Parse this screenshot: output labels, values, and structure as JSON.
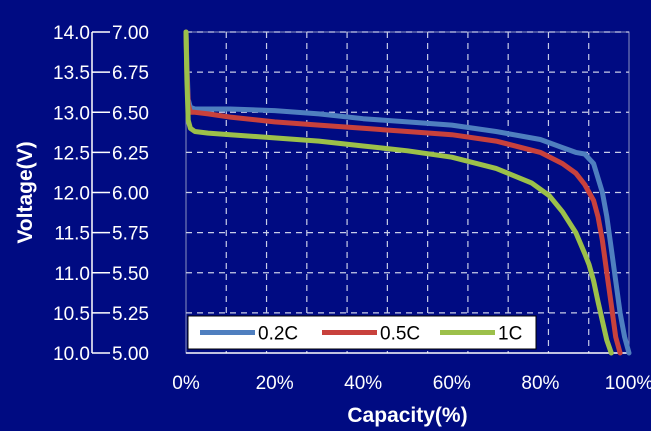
{
  "chart_data": {
    "type": "line",
    "xlabel": "Capacity(%)",
    "ylabel": "Voltage(V)",
    "xlim": [
      0,
      100
    ],
    "ylim": [
      5.0,
      7.0
    ],
    "x_ticks": [
      "0%",
      "20%",
      "40%",
      "60%",
      "80%",
      "100%"
    ],
    "x_tick_values": [
      0,
      20,
      40,
      60,
      80,
      100
    ],
    "y_ticks_left": [
      "14.0",
      "13.5",
      "13.0",
      "12.5",
      "12.0",
      "11.5",
      "11.0",
      "10.5",
      "10.0"
    ],
    "y_ticks_right": [
      "7.00",
      "6.75",
      "6.50",
      "6.25",
      "6.00",
      "5.75",
      "5.50",
      "5.25",
      "5.00"
    ],
    "y_tick_values": [
      7.0,
      6.75,
      6.5,
      6.25,
      6.0,
      5.75,
      5.5,
      5.25,
      5.0
    ],
    "grid": true,
    "legend_position": "bottom-left",
    "colors": {
      "background": "#000b82",
      "plot_background": "#000b82",
      "grid": "#c8cde8",
      "axis": "#ffffff",
      "text": "#ffffff"
    },
    "series": [
      {
        "name": "0.2C",
        "color": "#4f7fbf",
        "x": [
          0,
          0.2,
          0.5,
          1,
          2,
          5,
          10,
          20,
          30,
          40,
          50,
          60,
          70,
          80,
          85,
          88,
          90,
          92,
          94,
          95,
          96,
          97,
          98,
          99,
          100
        ],
        "y": [
          7.0,
          6.8,
          6.58,
          6.53,
          6.52,
          6.52,
          6.52,
          6.51,
          6.49,
          6.46,
          6.44,
          6.42,
          6.38,
          6.33,
          6.28,
          6.25,
          6.24,
          6.18,
          6.0,
          5.85,
          5.65,
          5.45,
          5.25,
          5.1,
          5.0
        ]
      },
      {
        "name": "0.5C",
        "color": "#c8413c",
        "x": [
          0,
          0.2,
          0.5,
          1,
          2,
          5,
          10,
          20,
          30,
          40,
          50,
          60,
          70,
          80,
          85,
          88,
          90,
          92,
          93,
          94,
          95,
          96,
          97,
          98
        ],
        "y": [
          7.0,
          6.75,
          6.55,
          6.5,
          6.5,
          6.49,
          6.47,
          6.44,
          6.42,
          6.4,
          6.38,
          6.36,
          6.32,
          6.25,
          6.18,
          6.12,
          6.05,
          5.95,
          5.85,
          5.7,
          5.5,
          5.3,
          5.1,
          5.0
        ]
      },
      {
        "name": "1C",
        "color": "#9cc04a",
        "x": [
          0,
          0.2,
          0.5,
          1,
          2,
          5,
          10,
          20,
          30,
          40,
          50,
          60,
          70,
          78,
          82,
          85,
          88,
          90,
          91,
          92,
          93,
          94,
          95,
          96
        ],
        "y": [
          7.0,
          6.7,
          6.45,
          6.4,
          6.38,
          6.37,
          6.36,
          6.34,
          6.32,
          6.29,
          6.26,
          6.22,
          6.15,
          6.06,
          5.98,
          5.88,
          5.75,
          5.62,
          5.55,
          5.45,
          5.32,
          5.2,
          5.08,
          5.0
        ]
      }
    ]
  }
}
